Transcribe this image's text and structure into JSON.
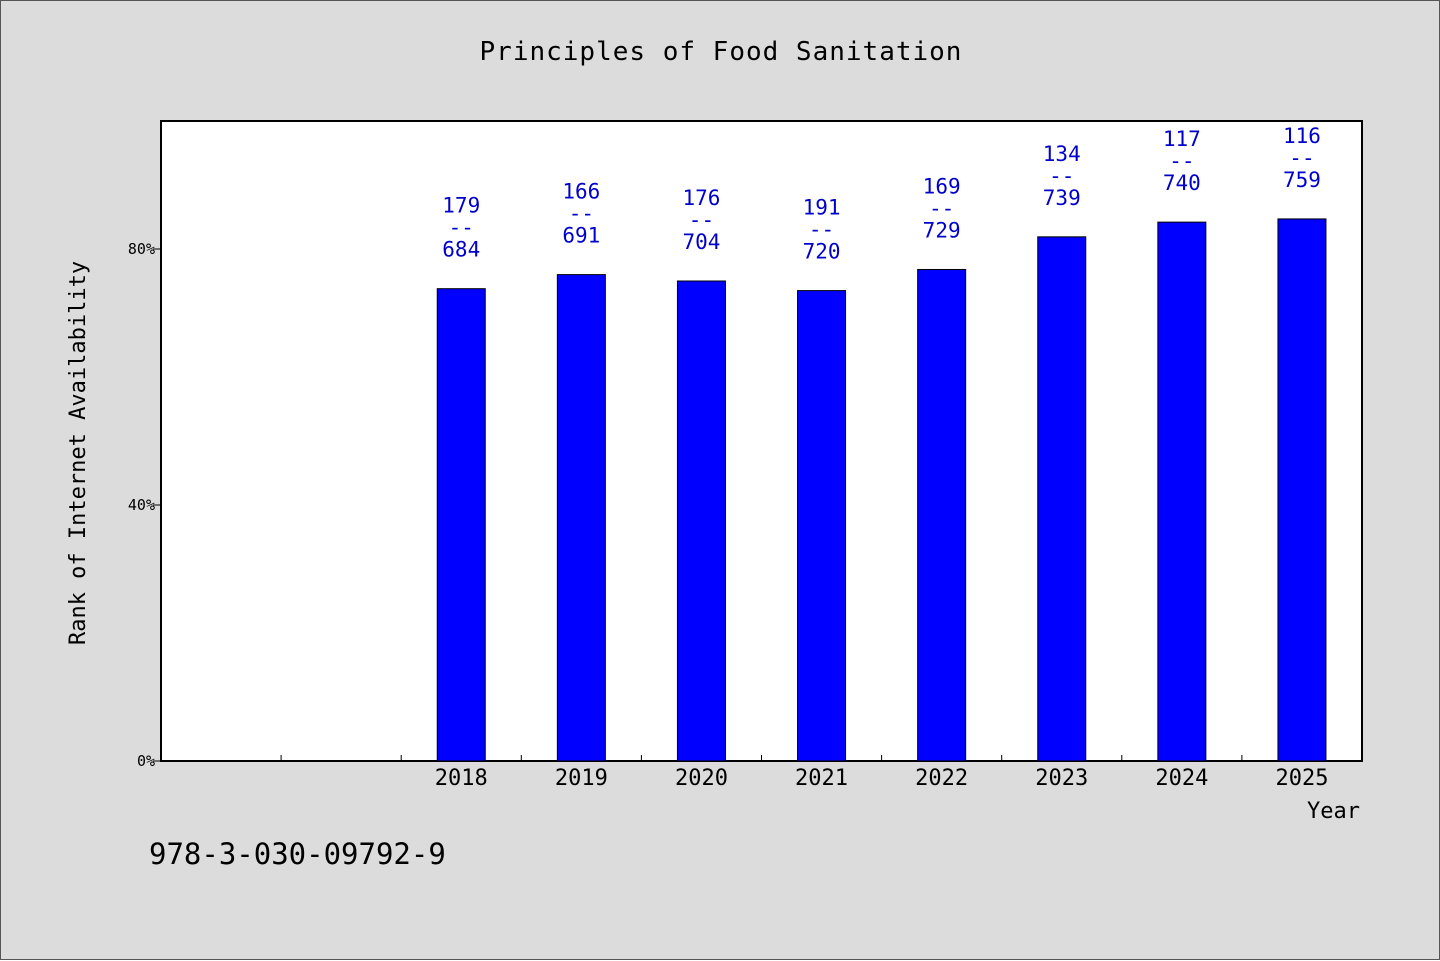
{
  "colors": {
    "background": "#dcdcdc",
    "plot_background": "#ffffff",
    "bar": "#0000ff",
    "bar_label": "#0000cc"
  },
  "isbn": "978-3-030-09792-9",
  "chart_data": {
    "type": "bar",
    "title": "Principles of Food Sanitation",
    "xlabel": "Year",
    "ylabel": "Rank of Internet Availability",
    "ylim": [
      0,
      100
    ],
    "y_ticks": [
      {
        "value": 0,
        "label": "0%"
      },
      {
        "value": 40,
        "label": "40%"
      },
      {
        "value": 80,
        "label": "80%"
      }
    ],
    "categories": [
      "",
      "",
      "2018",
      "2019",
      "2020",
      "2021",
      "2022",
      "2023",
      "2024",
      "2025"
    ],
    "values": [
      null,
      null,
      73.8,
      76.0,
      75.0,
      73.5,
      76.8,
      81.9,
      84.2,
      84.7
    ],
    "bar_labels": [
      null,
      null,
      [
        "179",
        "--",
        "684"
      ],
      [
        "166",
        "--",
        "691"
      ],
      [
        "176",
        "--",
        "704"
      ],
      [
        "191",
        "--",
        "720"
      ],
      [
        "169",
        "--",
        "729"
      ],
      [
        "134",
        "--",
        "739"
      ],
      [
        "117",
        "--",
        "740"
      ],
      [
        "116",
        "--",
        "759"
      ]
    ],
    "grid": false,
    "legend": "none"
  }
}
